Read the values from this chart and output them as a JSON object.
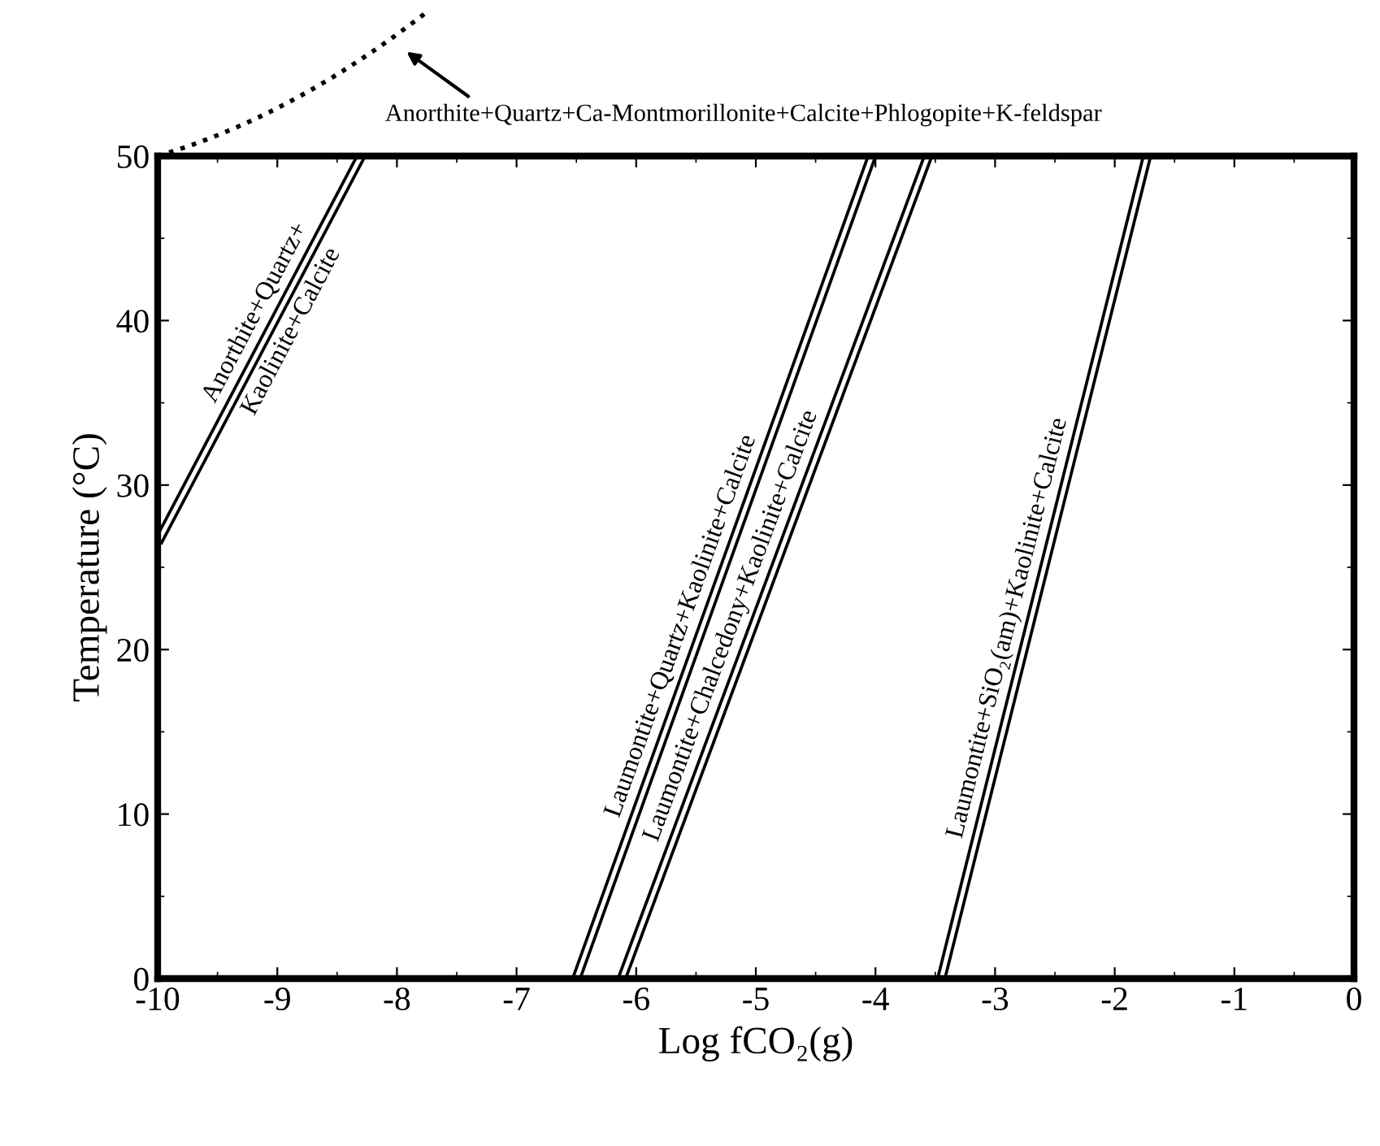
{
  "chart_data": {
    "type": "line",
    "xlabel": "Log fCO₂(g)",
    "ylabel": "Temperature (°C)",
    "series": [
      {
        "color": "#000000",
        "x": [
          -10,
          -8.3
        ],
        "values": [
          26.5,
          50
        ]
      },
      {
        "color": "#000000",
        "x": [
          -6.5,
          -4.03
        ],
        "values": [
          0,
          50
        ]
      },
      {
        "color": "#000000",
        "x": [
          -6.12,
          -3.56
        ],
        "values": [
          0,
          50
        ]
      },
      {
        "color": "#000000",
        "x": [
          -3.45,
          -1.73
        ],
        "values": [
          0,
          50
        ]
      }
    ],
    "annotations": [
      "Anorthite+Quartz+",
      "Kaolinite+Calcite",
      "Laumontite+Quartz+Kaolinite+Calcite",
      "Laumontite+Chalcedony+Kaolinite+Calcite",
      "Laumontite+SiO₂(am)+Kaolinite+Calcite",
      "Anorthite+Quartz+Ca-Montmorillonite+Calcite+Phlogopite+K-feldspar"
    ],
    "xlim": [
      -10,
      0
    ],
    "ylim": [
      0,
      50
    ],
    "xticks": [
      -10,
      -9,
      -8,
      -7,
      -6,
      -5,
      -4,
      -3,
      -2,
      -1,
      0
    ],
    "yticks": [
      0,
      10,
      20,
      30,
      40,
      50
    ],
    "grid": false,
    "marker": "none",
    "line_style": "solid"
  }
}
